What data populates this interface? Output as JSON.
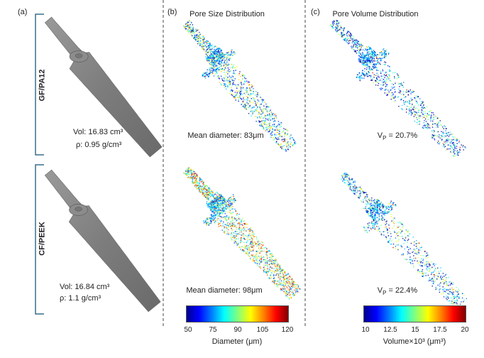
{
  "panels": {
    "a": "(a)",
    "b": "(b)",
    "c": "(c)"
  },
  "titles": {
    "b": "Pore Size Distribution",
    "c": "Pore Volume Distribution"
  },
  "rows": [
    {
      "label": "GF/PA12",
      "vol": "Vol: 16.83 cm³",
      "density": "ρ: 0.95 g/cm³",
      "mean_diameter": "Mean diameter: 83μm",
      "vp": {
        "symbol": "V",
        "sub": "P",
        "text": " = 20.7%"
      }
    },
    {
      "label": "CF/PEEK",
      "vol": "Vol: 16.84 cm³",
      "density": "ρ: 1.1 g/cm³",
      "mean_diameter": "Mean diameter: 98μm",
      "vp": {
        "symbol": "V",
        "sub": "P",
        "text": " = 22.4%"
      }
    }
  ],
  "colorbars": [
    {
      "ticks": [
        50,
        75,
        90,
        105,
        120
      ],
      "label": "Diameter (μm)"
    },
    {
      "ticks": [
        10,
        12.5,
        15,
        17.5,
        20
      ],
      "label": "Volume×10³ (μm³)"
    }
  ]
}
